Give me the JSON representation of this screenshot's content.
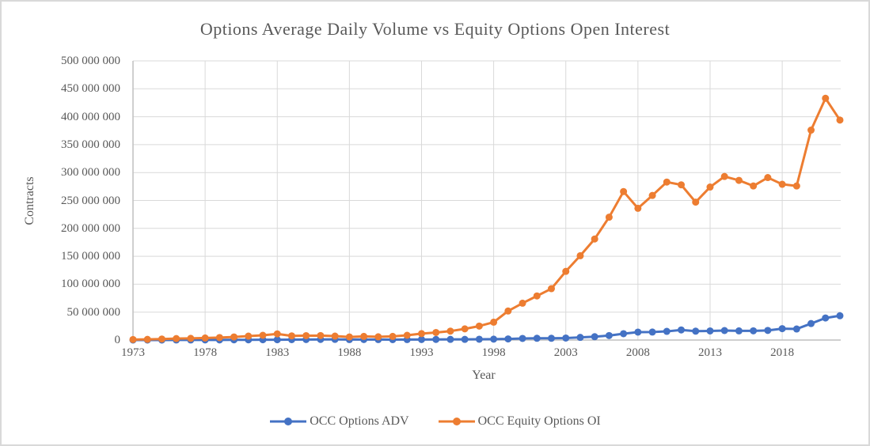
{
  "window": {
    "background": "#ffffff",
    "border_color": "#d9d9d9"
  },
  "chart_data": {
    "type": "line",
    "title": "Options Average Daily Volume vs Equity Options Open Interest",
    "xlabel": "Year",
    "ylabel": "Contracts",
    "grid": true,
    "legend_position": "bottom",
    "text_color": "#595959",
    "gridline_color": "#d9d9d9",
    "axis_color": "#bfbfbf",
    "ylim": [
      0,
      500000000
    ],
    "y_tick_interval": 50000000,
    "y_tick_labels": [
      "0",
      "50 000 000",
      "100 000 000",
      "150 000 000",
      "200 000 000",
      "250 000 000",
      "300 000 000",
      "350 000 000",
      "400 000 000",
      "450 000 000",
      "500 000 000"
    ],
    "x_tick_labels": [
      "1973",
      "1978",
      "1983",
      "1988",
      "1993",
      "1998",
      "2003",
      "2008",
      "2013",
      "2018"
    ],
    "x": [
      1973,
      1974,
      1975,
      1976,
      1977,
      1978,
      1979,
      1980,
      1981,
      1982,
      1983,
      1984,
      1985,
      1986,
      1987,
      1988,
      1989,
      1990,
      1991,
      1992,
      1993,
      1994,
      1995,
      1996,
      1997,
      1998,
      1999,
      2000,
      2001,
      2002,
      2003,
      2004,
      2005,
      2006,
      2007,
      2008,
      2009,
      2010,
      2011,
      2012,
      2013,
      2014,
      2015,
      2016,
      2017,
      2018,
      2019,
      2020,
      2021,
      2022
    ],
    "series": [
      {
        "name": "OCC Options ADV",
        "color": "#4472C4",
        "values": [
          20000,
          40000,
          70000,
          130000,
          160000,
          230000,
          250000,
          380000,
          440000,
          540000,
          600000,
          750000,
          930000,
          1140000,
          1200000,
          800000,
          900000,
          830000,
          790000,
          800000,
          920000,
          1120000,
          1160000,
          1180000,
          1450000,
          1600000,
          2000000,
          2900000,
          3100000,
          3100000,
          3600000,
          4700000,
          6000000,
          8000000,
          11400000,
          14200000,
          14300000,
          15500000,
          18100000,
          15900000,
          16300000,
          17000000,
          16400000,
          16500000,
          17200000,
          20400000,
          19800000,
          29500000,
          39500000,
          43500000
        ]
      },
      {
        "name": "OCC Equity Options OI",
        "color": "#ED7D31",
        "values": [
          900000,
          1200000,
          1800000,
          2600000,
          3000000,
          3700000,
          4500000,
          5500000,
          7000000,
          8500000,
          11000000,
          7500000,
          7800000,
          8000000,
          7000000,
          5500000,
          6500000,
          5800000,
          6500000,
          8500000,
          11500000,
          13500000,
          16000000,
          20000000,
          25000000,
          32000000,
          52000000,
          66000000,
          79000000,
          92000000,
          123000000,
          151000000,
          181000000,
          220000000,
          266000000,
          236000000,
          259000000,
          283000000,
          278000000,
          247000000,
          274000000,
          293000000,
          286000000,
          276000000,
          291000000,
          279000000,
          276000000,
          376000000,
          433000000,
          394000000
        ]
      }
    ]
  }
}
